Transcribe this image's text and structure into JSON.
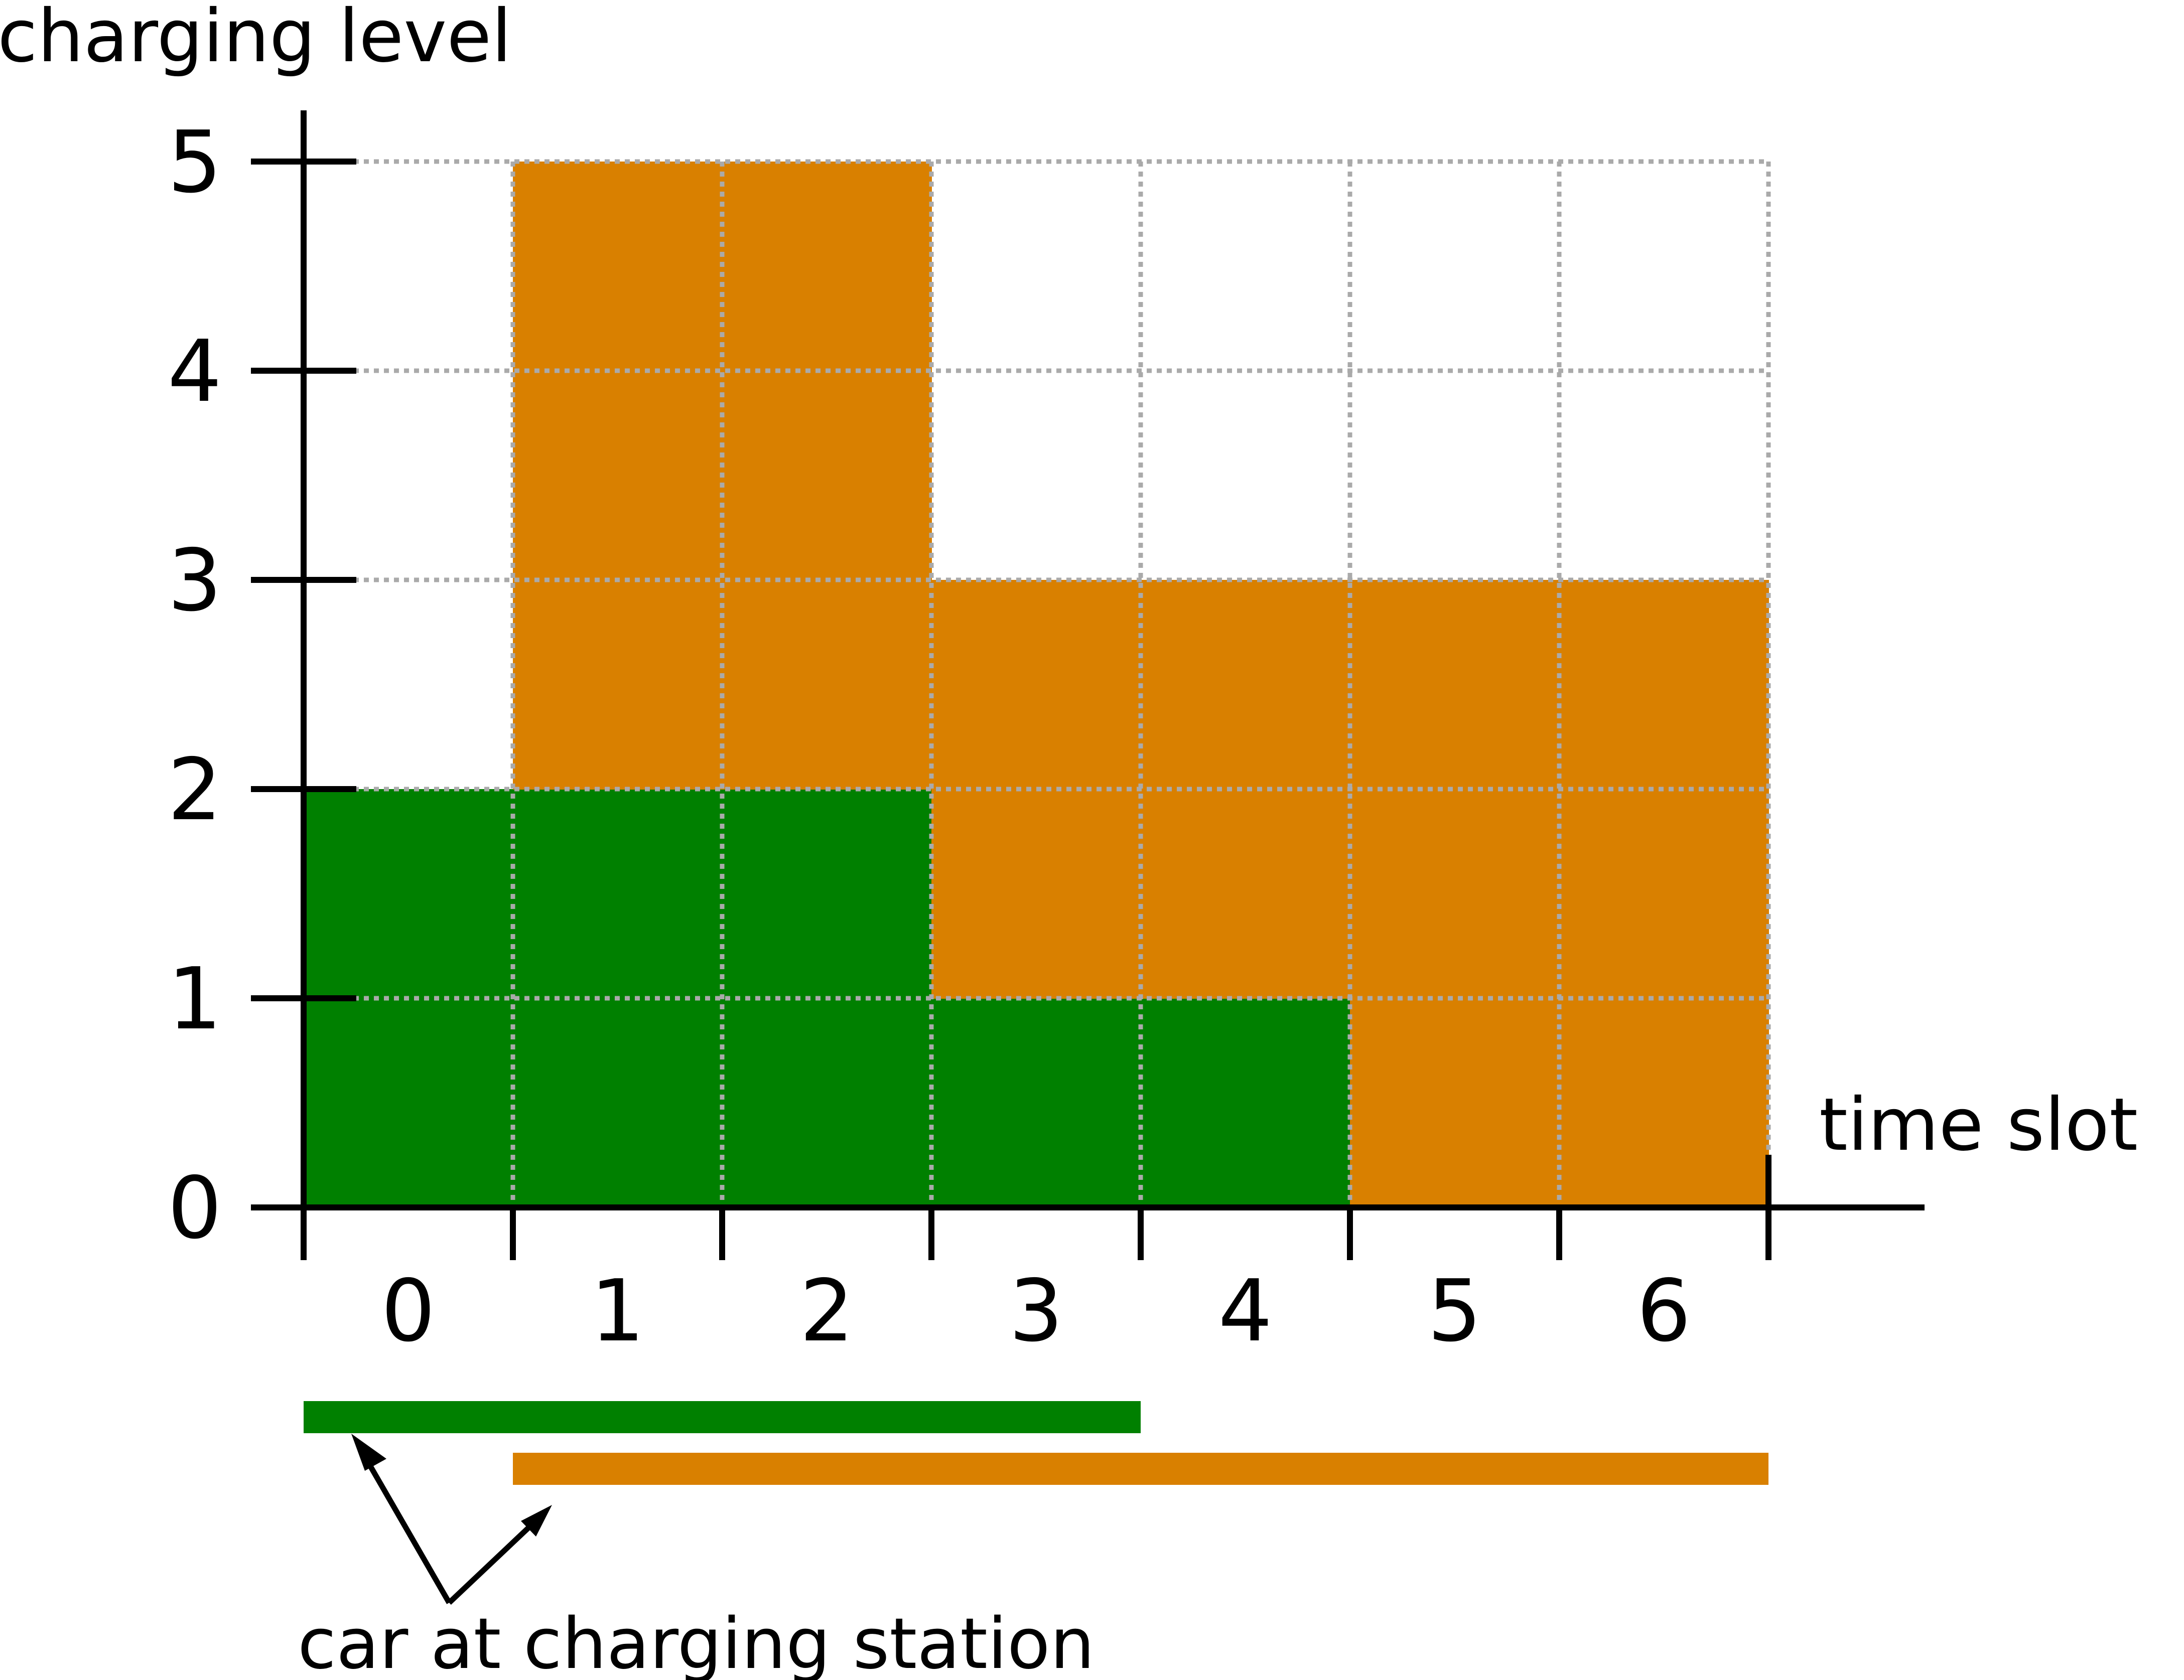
{
  "chart_data": {
    "type": "area",
    "ylabel": "charging level",
    "xlabel": "time slot",
    "x_ticks": [
      "0",
      "1",
      "2",
      "3",
      "4",
      "5",
      "6"
    ],
    "y_ticks": [
      "0",
      "1",
      "2",
      "3",
      "4",
      "5"
    ],
    "xlim": [
      0,
      7
    ],
    "ylim": [
      0,
      5
    ],
    "grid": true,
    "series": [
      {
        "color": "#008000",
        "levels": [
          2,
          2,
          2,
          1,
          1,
          0,
          0
        ],
        "presence": [
          0,
          4
        ]
      },
      {
        "color": "#d98000",
        "levels": [
          0,
          3,
          3,
          2,
          2,
          3,
          3
        ],
        "presence": [
          1,
          7
        ]
      }
    ],
    "annotation": "car at charging station"
  }
}
